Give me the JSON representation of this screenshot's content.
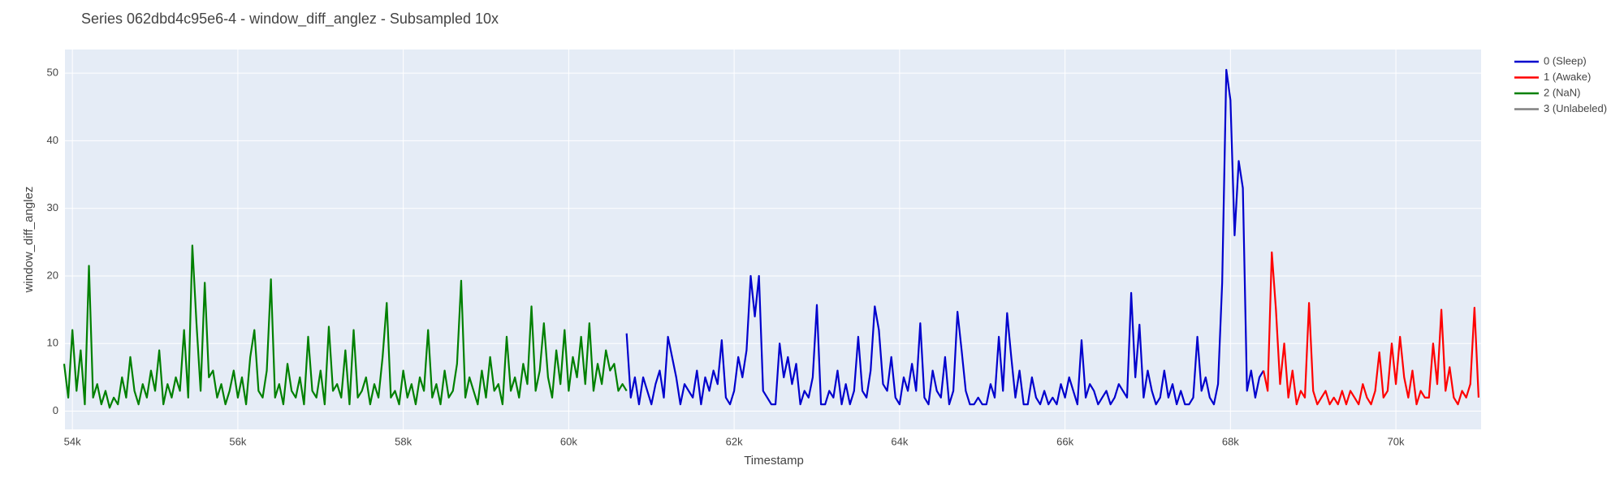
{
  "chart_data": {
    "type": "line",
    "title": "Series 062dbd4c95e6-4 - window_diff_anglez - Subsampled 10x",
    "x_label": "Timestamp",
    "y_label": "window_diff_anglez",
    "xlim": [
      53910,
      71030
    ],
    "ylim": [
      -2.7,
      53.5
    ],
    "xticks": [
      {
        "value": 54000,
        "label": "54k"
      },
      {
        "value": 56000,
        "label": "56k"
      },
      {
        "value": 58000,
        "label": "58k"
      },
      {
        "value": 60000,
        "label": "60k"
      },
      {
        "value": 62000,
        "label": "62k"
      },
      {
        "value": 64000,
        "label": "64k"
      },
      {
        "value": 66000,
        "label": "66k"
      },
      {
        "value": 68000,
        "label": "68k"
      },
      {
        "value": 70000,
        "label": "70k"
      }
    ],
    "yticks": [
      0,
      10,
      20,
      30,
      40,
      50
    ],
    "grid": true,
    "legend": "right",
    "series": [
      {
        "name": "0 (Sleep)",
        "color": "#0000cd",
        "x": [
          60700,
          60750,
          60800,
          60850,
          60900,
          60950,
          61000,
          61050,
          61100,
          61150,
          61200,
          61250,
          61300,
          61350,
          61400,
          61450,
          61500,
          61550,
          61600,
          61650,
          61700,
          61750,
          61800,
          61850,
          61900,
          61950,
          62000,
          62050,
          62100,
          62150,
          62200,
          62250,
          62300,
          62350,
          62400,
          62450,
          62500,
          62550,
          62600,
          62650,
          62700,
          62750,
          62800,
          62850,
          62900,
          62950,
          63000,
          63050,
          63100,
          63150,
          63200,
          63250,
          63300,
          63350,
          63400,
          63450,
          63500,
          63550,
          63600,
          63650,
          63700,
          63750,
          63800,
          63850,
          63900,
          63950,
          64000,
          64050,
          64100,
          64150,
          64200,
          64250,
          64300,
          64350,
          64400,
          64450,
          64500,
          64550,
          64600,
          64650,
          64700,
          64750,
          64800,
          64850,
          64900,
          64950,
          65000,
          65050,
          65100,
          65150,
          65200,
          65250,
          65300,
          65350,
          65400,
          65450,
          65500,
          65550,
          65600,
          65650,
          65700,
          65750,
          65800,
          65850,
          65900,
          65950,
          66000,
          66050,
          66100,
          66150,
          66200,
          66250,
          66300,
          66350,
          66400,
          66450,
          66500,
          66550,
          66600,
          66650,
          66700,
          66750,
          66800,
          66850,
          66900,
          66950,
          67000,
          67050,
          67100,
          67150,
          67200,
          67250,
          67300,
          67350,
          67400,
          67450,
          67500,
          67550,
          67600,
          67650,
          67700,
          67750,
          67800,
          67850,
          67900,
          67950,
          68000,
          68050,
          68100,
          68150,
          68200,
          68250,
          68300,
          68350,
          68400
        ],
        "values": [
          11.5,
          2,
          5,
          1,
          5,
          3,
          1,
          4,
          6,
          2,
          11,
          8,
          5,
          1,
          4,
          3,
          2,
          6,
          1,
          5,
          3,
          6,
          4,
          10.5,
          2,
          1,
          3,
          8,
          5,
          9,
          20,
          14,
          20,
          3,
          2,
          1,
          1,
          10,
          5,
          8,
          4,
          7,
          1,
          3,
          2,
          5,
          15.7,
          1,
          1,
          3,
          2,
          6,
          1,
          4,
          1,
          3,
          11,
          3,
          2,
          6,
          15.5,
          12,
          4,
          3,
          8,
          2,
          1,
          5,
          3,
          7,
          3,
          13,
          2,
          1,
          6,
          3,
          2,
          8,
          1,
          3,
          14.7,
          9,
          3,
          1,
          1,
          2,
          1,
          1,
          4,
          2,
          11,
          3,
          14.5,
          8,
          2,
          6,
          1,
          1,
          5,
          2,
          1,
          3,
          1,
          2,
          1,
          4,
          2,
          5,
          3,
          1,
          10.5,
          2,
          4,
          3,
          1,
          2,
          3,
          1,
          2,
          4,
          3,
          2,
          17.5,
          5,
          12.8,
          2,
          6,
          3,
          1,
          2,
          6,
          2,
          4,
          1,
          3,
          1,
          1,
          2,
          11,
          3,
          5,
          2,
          1,
          4,
          19,
          50.5,
          46,
          26,
          37,
          33,
          3,
          6,
          2,
          5,
          6
        ]
      },
      {
        "name": "1 (Awake)",
        "color": "#ff0000",
        "x": [
          68400,
          68450,
          68500,
          68550,
          68600,
          68650,
          68700,
          68750,
          68800,
          68850,
          68900,
          68950,
          69000,
          69050,
          69100,
          69150,
          69200,
          69250,
          69300,
          69350,
          69400,
          69450,
          69500,
          69550,
          69600,
          69650,
          69700,
          69750,
          69800,
          69850,
          69900,
          69950,
          70000,
          70050,
          70100,
          70150,
          70200,
          70250,
          70300,
          70350,
          70400,
          70450,
          70500,
          70550,
          70600,
          70650,
          70700,
          70750,
          70800,
          70850,
          70900,
          70950,
          71000
        ],
        "values": [
          6,
          3,
          23.5,
          15,
          4,
          10,
          2,
          6,
          1,
          3,
          2,
          16,
          3,
          1,
          2,
          3,
          1,
          2,
          1,
          3,
          1,
          3,
          2,
          1,
          4,
          2,
          1,
          3,
          8.7,
          2,
          3,
          10,
          4,
          11,
          5,
          2,
          6,
          1,
          3,
          2,
          2,
          10,
          4,
          15,
          3,
          6.5,
          2,
          1,
          3,
          2,
          4,
          15.3,
          2
        ]
      },
      {
        "name": "2 (NaN)",
        "color": "#008000",
        "x": [
          53900,
          53950,
          54000,
          54050,
          54100,
          54150,
          54200,
          54250,
          54300,
          54350,
          54400,
          54450,
          54500,
          54550,
          54600,
          54650,
          54700,
          54750,
          54800,
          54850,
          54900,
          54950,
          55000,
          55050,
          55100,
          55150,
          55200,
          55250,
          55300,
          55350,
          55400,
          55450,
          55500,
          55550,
          55600,
          55650,
          55700,
          55750,
          55800,
          55850,
          55900,
          55950,
          56000,
          56050,
          56100,
          56150,
          56200,
          56250,
          56300,
          56350,
          56400,
          56450,
          56500,
          56550,
          56600,
          56650,
          56700,
          56750,
          56800,
          56850,
          56900,
          56950,
          57000,
          57050,
          57100,
          57150,
          57200,
          57250,
          57300,
          57350,
          57400,
          57450,
          57500,
          57550,
          57600,
          57650,
          57700,
          57750,
          57800,
          57850,
          57900,
          57950,
          58000,
          58050,
          58100,
          58150,
          58200,
          58250,
          58300,
          58350,
          58400,
          58450,
          58500,
          58550,
          58600,
          58650,
          58700,
          58750,
          58800,
          58850,
          58900,
          58950,
          59000,
          59050,
          59100,
          59150,
          59200,
          59250,
          59300,
          59350,
          59400,
          59450,
          59500,
          59550,
          59600,
          59650,
          59700,
          59750,
          59800,
          59850,
          59900,
          59950,
          60000,
          60050,
          60100,
          60150,
          60200,
          60250,
          60300,
          60350,
          60400,
          60450,
          60500,
          60550,
          60600,
          60650,
          60700
        ],
        "values": [
          7,
          2,
          12,
          3,
          9,
          1,
          21.5,
          2,
          4,
          1,
          3,
          0.5,
          2,
          1,
          5,
          2,
          8,
          3,
          1,
          4,
          2,
          6,
          3,
          9,
          1,
          4,
          2,
          5,
          3,
          12,
          2,
          24.5,
          13,
          3,
          19,
          5,
          6,
          2,
          4,
          1,
          3,
          6,
          2,
          5,
          1,
          8,
          12,
          3,
          2,
          6,
          19.5,
          2,
          4,
          1,
          7,
          3,
          2,
          5,
          1,
          11,
          3,
          2,
          6,
          1,
          12.5,
          3,
          4,
          2,
          9,
          1,
          12,
          2,
          3,
          5,
          1,
          4,
          2,
          8,
          16,
          2,
          3,
          1,
          6,
          2,
          4,
          1,
          5,
          3,
          12,
          2,
          4,
          1,
          6,
          2,
          3,
          7,
          19.3,
          2,
          5,
          3,
          1,
          6,
          2,
          8,
          3,
          4,
          1,
          11,
          3,
          5,
          2,
          7,
          4,
          15.5,
          3,
          6,
          13,
          5,
          2,
          9,
          4,
          12,
          3,
          8,
          5,
          11,
          4,
          13,
          3,
          7,
          4,
          9,
          6,
          7,
          3,
          4,
          3
        ]
      },
      {
        "name": "3 (Unlabeled)",
        "color": "#808080",
        "x": [],
        "values": []
      }
    ]
  }
}
